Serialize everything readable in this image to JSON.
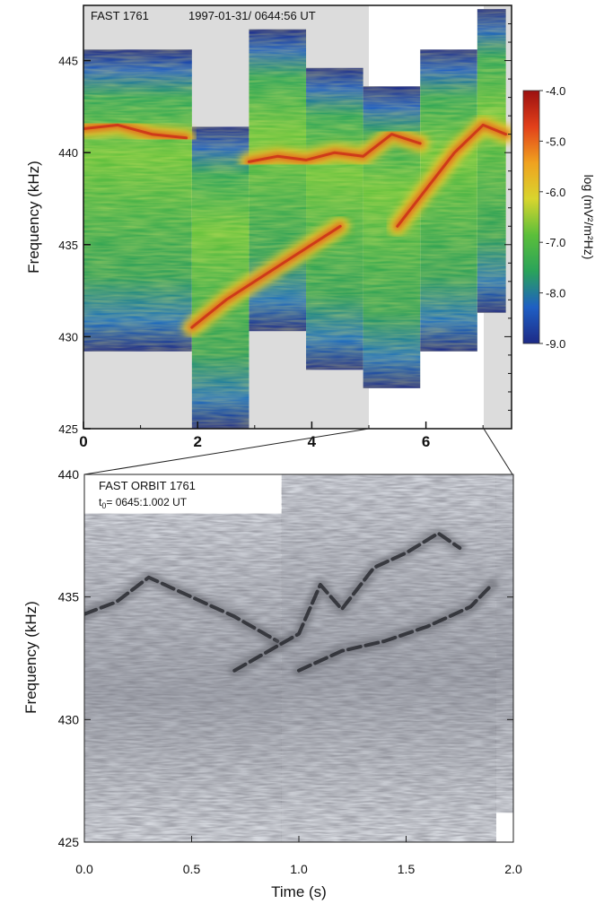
{
  "chart_data": [
    {
      "type": "heatmap",
      "title": "FAST 1761",
      "subtitle": "1997-01-31/ 0644:56 UT",
      "xlabel": "",
      "ylabel": "Frequency (kHz)",
      "xlim": [
        0,
        7.5
      ],
      "ylim": [
        425,
        448
      ],
      "xticks": [
        "0",
        "2",
        "4",
        "6"
      ],
      "yticks": [
        "425",
        "430",
        "435",
        "440",
        "445"
      ],
      "colorbar": {
        "label": "log (mV²/m²Hz)",
        "ticks": [
          "-4.0",
          "-5.0",
          "-6.0",
          "-7.0",
          "-8.0",
          "-9.0"
        ],
        "range": [
          -9.0,
          -4.0
        ],
        "colors": [
          "#1d2a86",
          "#1f5fc4",
          "#2aa35a",
          "#5bbf3a",
          "#d8d52e",
          "#f0a21f",
          "#e2401a",
          "#9c1010"
        ]
      },
      "segments": [
        {
          "t0": 0.0,
          "t1": 1.9,
          "fmin": 429.2,
          "fmax": 445.6
        },
        {
          "t0": 1.9,
          "t1": 2.9,
          "fmin": 425.0,
          "fmax": 441.4
        },
        {
          "t0": 2.9,
          "t1": 3.9,
          "fmin": 430.3,
          "fmax": 446.7
        },
        {
          "t0": 3.9,
          "t1": 4.9,
          "fmin": 428.2,
          "fmax": 444.6
        },
        {
          "t0": 4.9,
          "t1": 5.9,
          "fmin": 427.2,
          "fmax": 443.6
        },
        {
          "t0": 5.9,
          "t1": 6.9,
          "fmin": 429.2,
          "fmax": 445.6
        },
        {
          "t0": 6.9,
          "t1": 7.4,
          "fmin": 431.3,
          "fmax": 447.8
        }
      ],
      "emission_ridges": [
        {
          "t": [
            0.0,
            0.6,
            1.2,
            1.8
          ],
          "f": [
            441.3,
            441.5,
            441.0,
            440.8
          ]
        },
        {
          "t": [
            2.9,
            3.4,
            3.9,
            4.4,
            4.9,
            5.4,
            5.9
          ],
          "f": [
            439.5,
            439.8,
            439.6,
            440.0,
            439.8,
            441.0,
            440.5
          ]
        },
        {
          "t": [
            1.9,
            2.5,
            3.0,
            3.5,
            4.0,
            4.5
          ],
          "f": [
            430.5,
            432.0,
            433.0,
            434.0,
            435.0,
            436.0
          ]
        },
        {
          "t": [
            5.5,
            6.0,
            6.5,
            7.0,
            7.4
          ],
          "f": [
            436.0,
            438.0,
            440.0,
            441.5,
            441.0
          ]
        }
      ]
    },
    {
      "type": "heatmap",
      "title": "FAST  ORBIT 1761",
      "subtitle_prefix": "t",
      "subtitle_sub": "0",
      "subtitle_rest": "= 0645:1.002 UT",
      "xlabel": "Time  (s)",
      "ylabel": "Frequency  (kHz)",
      "xlim": [
        0.0,
        2.0
      ],
      "ylim": [
        425,
        440
      ],
      "xticks": [
        "0.0",
        "0.5",
        "1.0",
        "1.5",
        "2.0"
      ],
      "yticks": [
        "425",
        "430",
        "435",
        "440"
      ],
      "colormap": "grayscale",
      "segments": [
        {
          "t0": 0.0,
          "t1": 0.92,
          "fmin": 425.0,
          "fmax": 438.4
        },
        {
          "t0": 0.92,
          "t1": 1.92,
          "fmin": 425.0,
          "fmax": 440.0
        },
        {
          "t0": 1.92,
          "t1": 2.0,
          "fmin": 426.2,
          "fmax": 440.0
        }
      ],
      "emission_ridges": [
        {
          "t": [
            0.0,
            0.15,
            0.3,
            0.5,
            0.7,
            0.9
          ],
          "f": [
            434.3,
            434.8,
            435.8,
            435.0,
            434.2,
            433.2
          ]
        },
        {
          "t": [
            0.7,
            0.8,
            0.9,
            1.0,
            1.1,
            1.2,
            1.35,
            1.5,
            1.65,
            1.75
          ],
          "f": [
            432.0,
            432.5,
            433.0,
            433.5,
            435.5,
            434.5,
            436.2,
            436.8,
            437.6,
            437.0
          ]
        },
        {
          "t": [
            1.0,
            1.2,
            1.4,
            1.6,
            1.8,
            1.9
          ],
          "f": [
            432.0,
            432.8,
            433.2,
            433.8,
            434.6,
            435.5
          ]
        }
      ]
    }
  ]
}
